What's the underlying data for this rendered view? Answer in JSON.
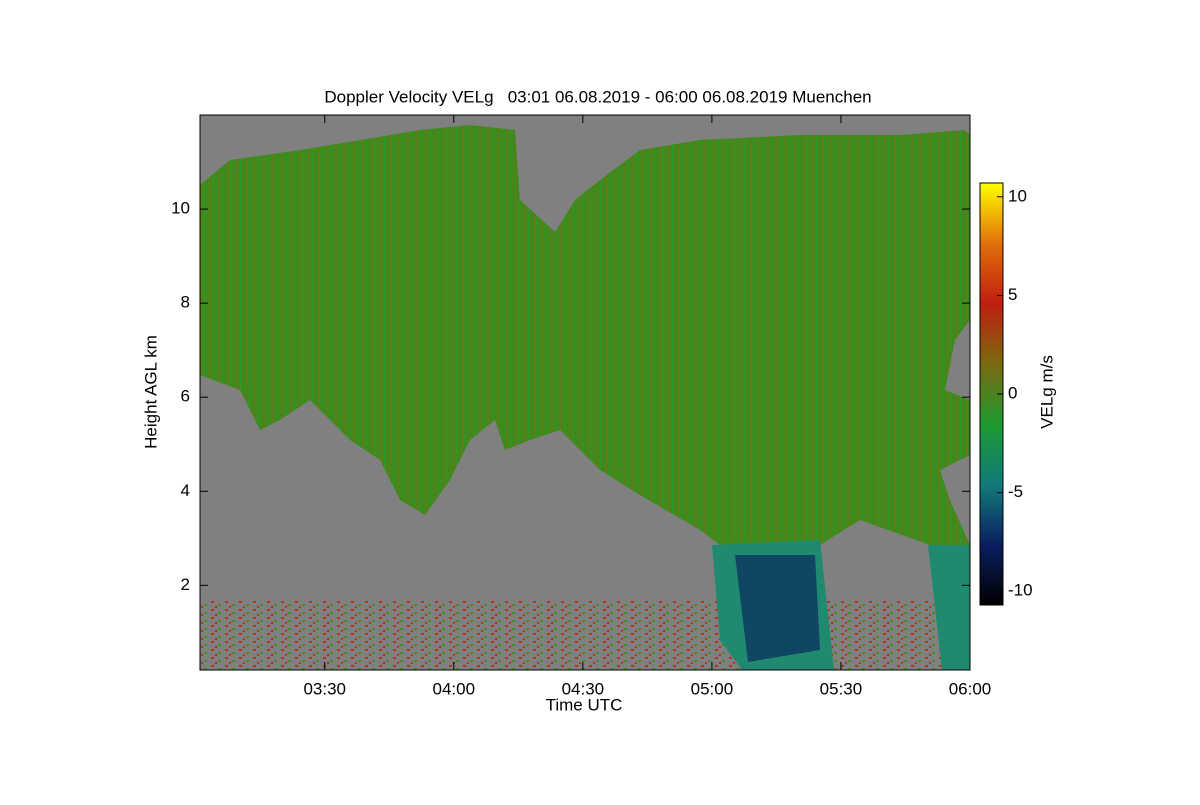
{
  "chart_data": {
    "type": "heatmap",
    "title": "Doppler Velocity VELg   03:01 06.08.2019 - 06:00 06.08.2019 Muenchen",
    "x_label": "Time UTC",
    "y_label": "Height AGL km",
    "xlim": [
      181,
      360
    ],
    "xticks": [
      {
        "value": 210,
        "label": "03:30"
      },
      {
        "value": 240,
        "label": "04:00"
      },
      {
        "value": 270,
        "label": "04:30"
      },
      {
        "value": 300,
        "label": "05:00"
      },
      {
        "value": 330,
        "label": "05:30"
      },
      {
        "value": 360,
        "label": "06:00"
      }
    ],
    "ylim": [
      0.2,
      12
    ],
    "yticks": [
      2,
      4,
      6,
      8,
      10
    ],
    "colorbar": {
      "label": "VELg m/s",
      "lim": [
        -10.7,
        10.7
      ],
      "ticks": [
        -10,
        -5,
        0,
        5,
        10
      ],
      "colors": [
        "#000000",
        "#0a1f5e",
        "#127a7a",
        "#1e9a30",
        "#7a6a10",
        "#c01e10",
        "#e0700a",
        "#ffff00"
      ]
    }
  }
}
